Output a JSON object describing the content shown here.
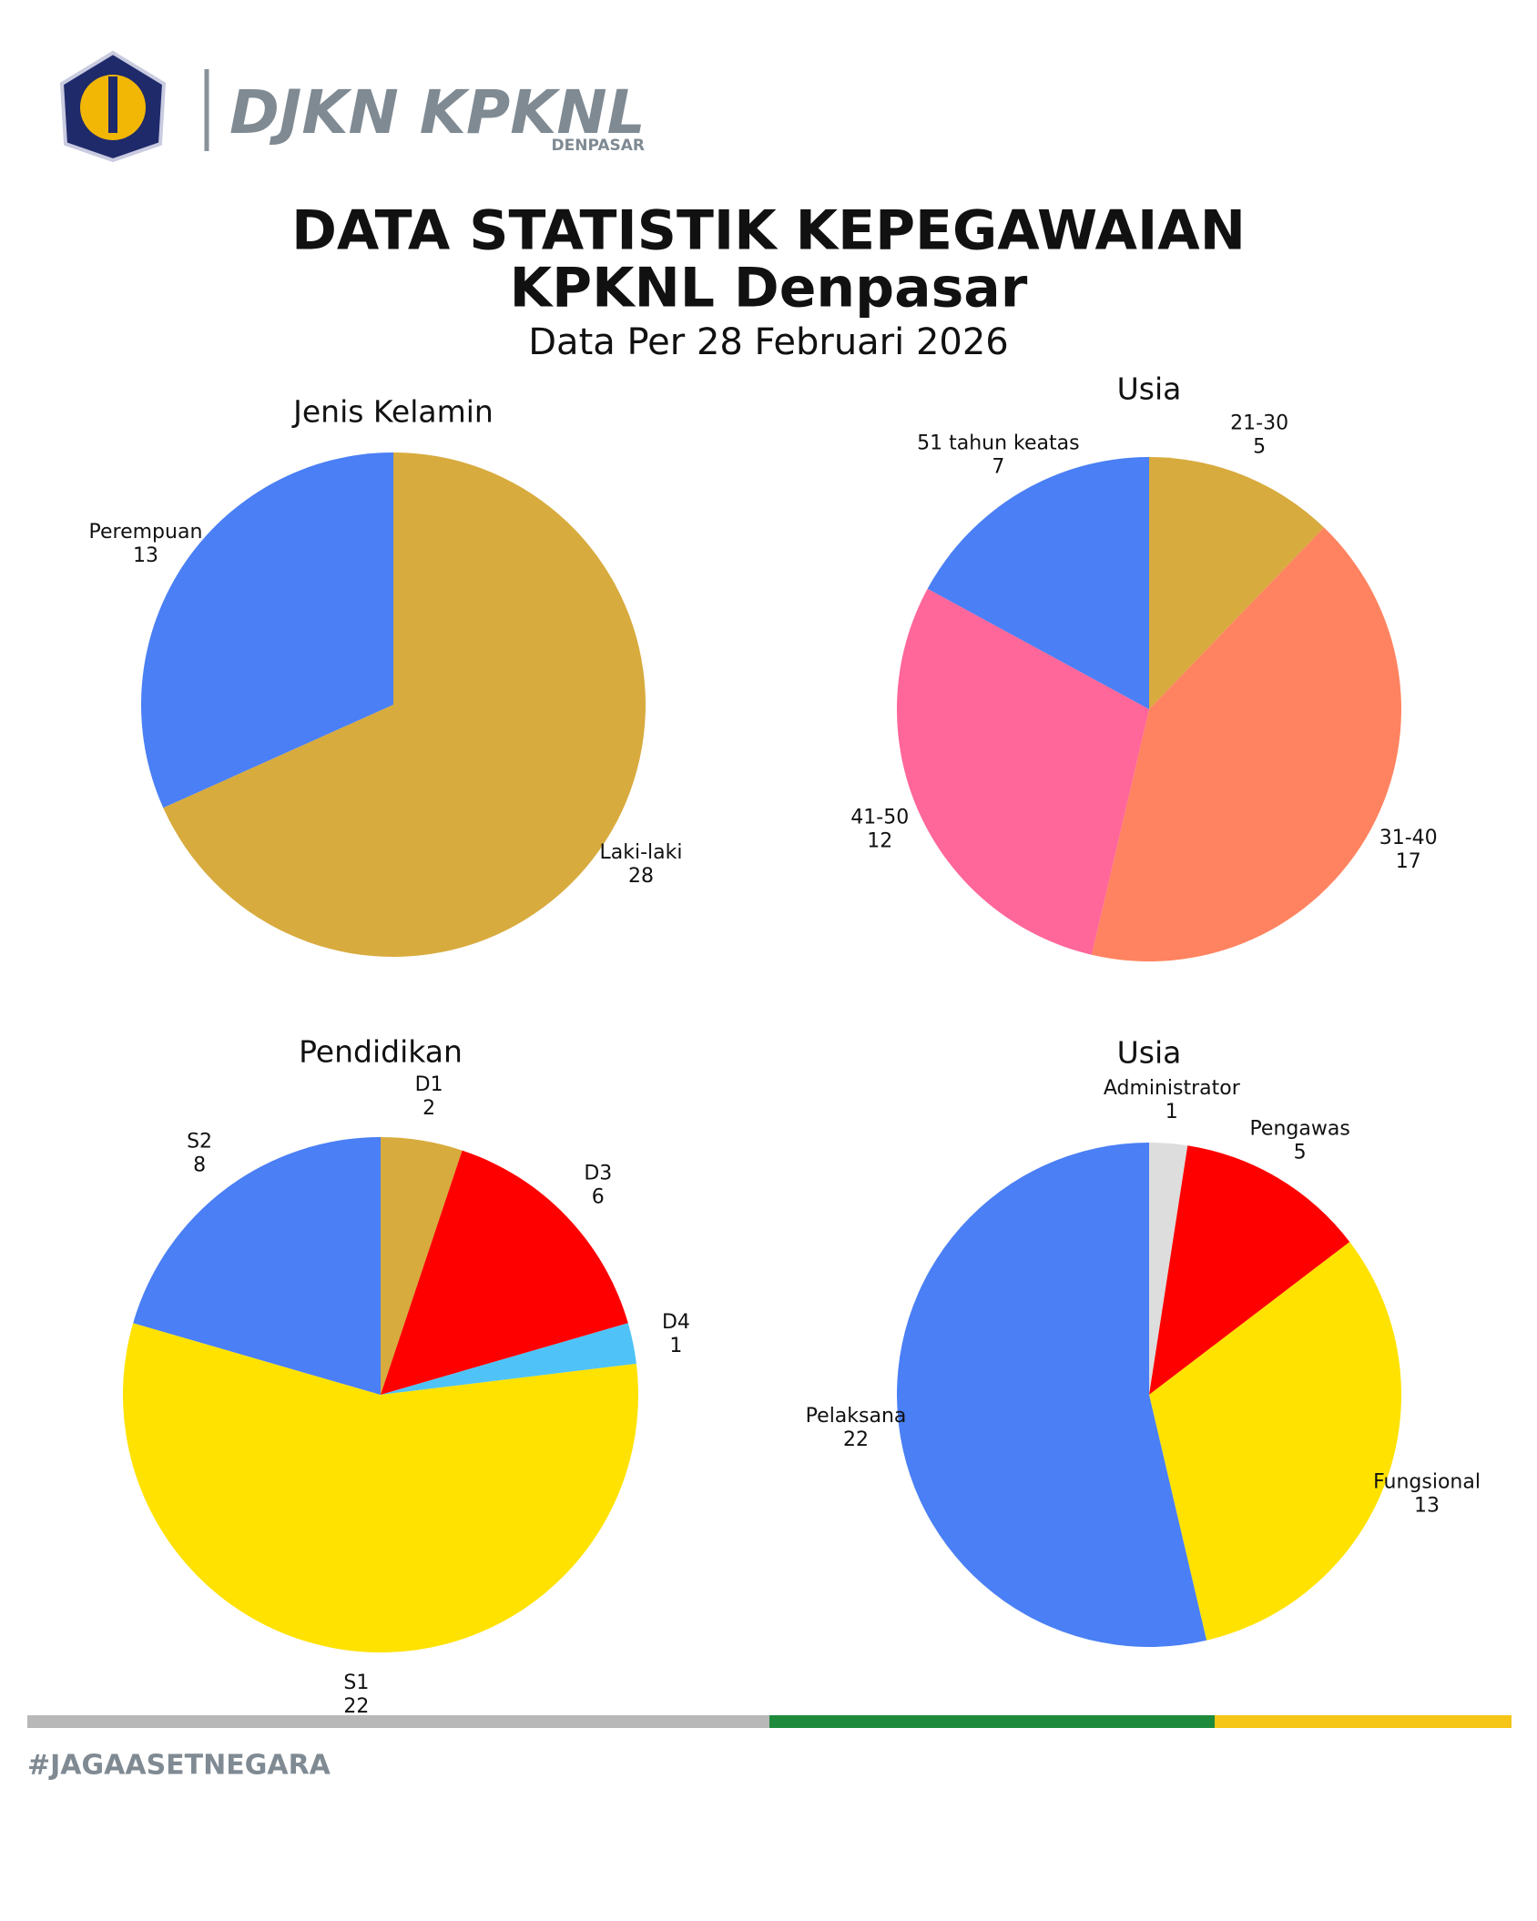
{
  "header": {
    "brand": "DJKN KPKNL",
    "brand_sub": "DENPASAR",
    "title": [
      "DATA STATISTIK KEPEGAWAIAN",
      "KPKNL Denpasar"
    ],
    "subtitle": "Data Per 28 Februari 2026"
  },
  "chart_data": [
    {
      "type": "pie",
      "title": "Jenis Kelamin",
      "categories": [
        "Laki-laki",
        "Perempuan"
      ],
      "values": [
        28,
        13
      ],
      "colors": [
        "#d8ab3e",
        "#4a7ff5"
      ]
    },
    {
      "type": "pie",
      "title": "Usia",
      "categories": [
        "21-30",
        "31-40",
        "41-50",
        "51 tahun keatas"
      ],
      "values": [
        5,
        17,
        12,
        7
      ],
      "colors": [
        "#d8ab3e",
        "#ff8360",
        "#ff6699",
        "#4a7ff5"
      ]
    },
    {
      "type": "pie",
      "title": "Pendidikan",
      "categories": [
        "D1",
        "D3",
        "D4",
        "S1",
        "S2"
      ],
      "values": [
        2,
        6,
        1,
        22,
        8
      ],
      "colors": [
        "#d8ab3e",
        "#ff0000",
        "#4fc3f7",
        "#ffe200",
        "#4a7ff5"
      ]
    },
    {
      "type": "pie",
      "title": "Usia",
      "categories": [
        "Administrator",
        "Pengawas",
        "Fungsional",
        "Pelaksana"
      ],
      "values": [
        1,
        5,
        13,
        22
      ],
      "colors": [
        "#dddddd",
        "#ff0000",
        "#ffe200",
        "#4a7ff5"
      ]
    }
  ],
  "footer": {
    "hashtag": "#JAGAASETNEGARA"
  }
}
